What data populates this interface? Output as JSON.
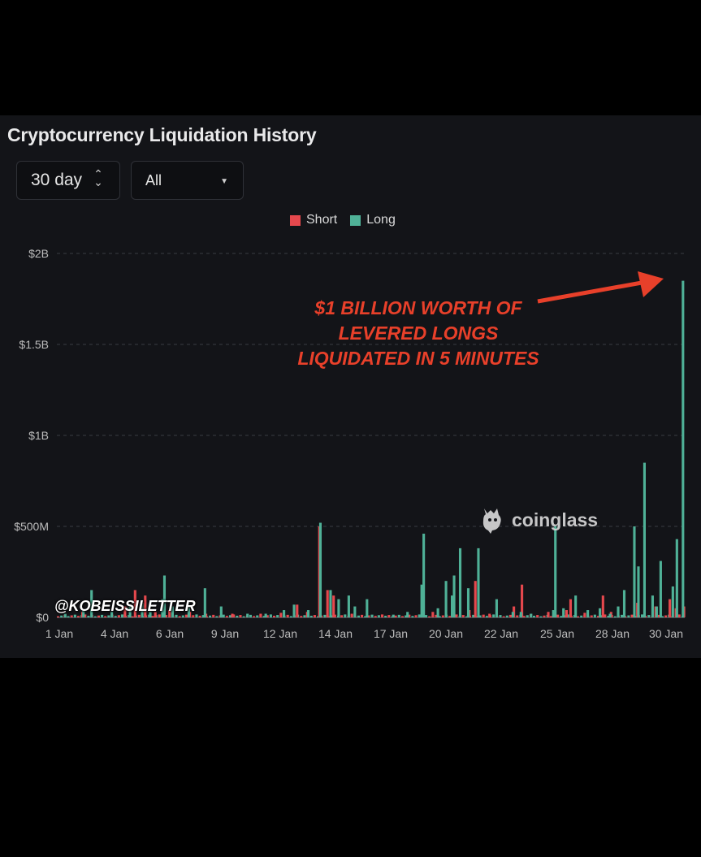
{
  "title": "Cryptocurrency Liquidation History",
  "controls": {
    "period": "30 day",
    "period_icon": "up-down-chevron-icon",
    "scope": "All",
    "scope_icon": "caret-down-icon"
  },
  "annotation": "$1 BILLION WORTH OF LEVERED LONGS LIQUIDATED IN 5 MINUTES",
  "watermark": "coinglass",
  "handle": "@KOBEISSILETTER",
  "colors": {
    "short": "#e5484d",
    "long": "#4fb197",
    "arrow": "#e8402a"
  },
  "chart_data": {
    "type": "bar",
    "legend": [
      "Short",
      "Long"
    ],
    "x_tick_labels": [
      "1 Jan",
      "4 Jan",
      "6 Jan",
      "9 Jan",
      "12 Jan",
      "14 Jan",
      "17 Jan",
      "20 Jan",
      "22 Jan",
      "25 Jan",
      "28 Jan",
      "30 Jan"
    ],
    "y_tick_labels": [
      "$0",
      "$500M",
      "$1B",
      "$1.5B",
      "$2B"
    ],
    "ylim": [
      0,
      2000
    ],
    "y_unit": "millions USD",
    "grid": true,
    "legend_position": "top-center",
    "x_range_days": [
      1,
      32
    ],
    "bars_per_day": 6,
    "series": [
      {
        "name": "Short",
        "points": [
          [
            2.2,
            30
          ],
          [
            4.3,
            60
          ],
          [
            4.8,
            150
          ],
          [
            5.3,
            120
          ],
          [
            5.8,
            30
          ],
          [
            6.5,
            40
          ],
          [
            7.5,
            30
          ],
          [
            8.3,
            20
          ],
          [
            9.6,
            20
          ],
          [
            11,
            20
          ],
          [
            12,
            25
          ],
          [
            12.8,
            70
          ],
          [
            13.3,
            30
          ],
          [
            13.9,
            500
          ],
          [
            14.3,
            150
          ],
          [
            14.6,
            120
          ],
          [
            15.5,
            20
          ],
          [
            17,
            15
          ],
          [
            19.5,
            30
          ],
          [
            20.5,
            40
          ],
          [
            21.3,
            40
          ],
          [
            21.6,
            200
          ],
          [
            22.3,
            20
          ],
          [
            23.5,
            60
          ],
          [
            23.9,
            180
          ],
          [
            25.2,
            30
          ],
          [
            26.1,
            40
          ],
          [
            26.3,
            100
          ],
          [
            27,
            25
          ],
          [
            27.9,
            120
          ],
          [
            28.3,
            30
          ],
          [
            29.6,
            80
          ],
          [
            30.5,
            60
          ],
          [
            31.2,
            100
          ],
          [
            31.5,
            50
          ],
          [
            31.9,
            60
          ]
        ]
      },
      {
        "name": "Long",
        "points": [
          [
            1.3,
            20
          ],
          [
            2.2,
            40
          ],
          [
            2.6,
            150
          ],
          [
            3.6,
            30
          ],
          [
            4.5,
            60
          ],
          [
            5.1,
            80
          ],
          [
            5.5,
            30
          ],
          [
            6.1,
            100
          ],
          [
            6.2,
            230
          ],
          [
            6.6,
            60
          ],
          [
            7.4,
            60
          ],
          [
            8.2,
            160
          ],
          [
            9,
            60
          ],
          [
            10.3,
            20
          ],
          [
            11.2,
            20
          ],
          [
            12.1,
            40
          ],
          [
            12.6,
            70
          ],
          [
            13.3,
            40
          ],
          [
            13.9,
            520
          ],
          [
            14.4,
            150
          ],
          [
            14.8,
            100
          ],
          [
            15.3,
            120
          ],
          [
            15.6,
            60
          ],
          [
            16.2,
            100
          ],
          [
            17.5,
            15
          ],
          [
            18.2,
            30
          ],
          [
            18.9,
            180
          ],
          [
            19,
            460
          ],
          [
            19.7,
            50
          ],
          [
            20.1,
            200
          ],
          [
            20.4,
            120
          ],
          [
            20.5,
            230
          ],
          [
            20.8,
            380
          ],
          [
            21.2,
            160
          ],
          [
            21.7,
            380
          ],
          [
            22.6,
            100
          ],
          [
            23.4,
            30
          ],
          [
            23.8,
            30
          ],
          [
            24.3,
            20
          ],
          [
            25.4,
            40
          ],
          [
            25.5,
            500
          ],
          [
            25.9,
            50
          ],
          [
            26.5,
            120
          ],
          [
            27.1,
            40
          ],
          [
            27.7,
            50
          ],
          [
            28.2,
            20
          ],
          [
            28.6,
            60
          ],
          [
            28.9,
            150
          ],
          [
            29.4,
            500
          ],
          [
            29.6,
            280
          ],
          [
            29.9,
            850
          ],
          [
            30.3,
            120
          ],
          [
            30.5,
            60
          ],
          [
            30.7,
            310
          ],
          [
            31.3,
            170
          ],
          [
            31.5,
            430
          ],
          [
            31.8,
            1850
          ]
        ]
      }
    ]
  }
}
